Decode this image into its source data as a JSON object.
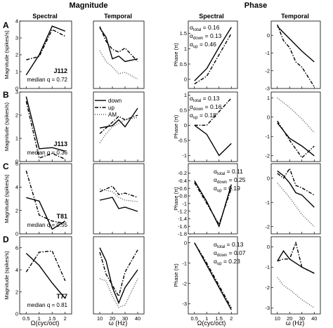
{
  "sections": {
    "magnitude": "Magnitude",
    "phase": "Phase"
  },
  "columns": [
    "Spectral",
    "Temporal",
    "Spectral",
    "Temporal"
  ],
  "row_letters": [
    "A",
    "B",
    "C",
    "D"
  ],
  "ylabels": {
    "magnitude": "Magnitude (spikes/s)",
    "phase": "Phase (π)"
  },
  "xlabels": {
    "spectral": "Ω(cyc/oct)",
    "temporal": "ω (Hz)"
  },
  "legend": {
    "down": "down",
    "up": "up",
    "am": "AM"
  },
  "colors": {
    "line": "#000000",
    "am": "#555555"
  },
  "chart_data": [
    {
      "type": "line",
      "row": "A",
      "column": "magnitude-spectral",
      "ylim": [
        0,
        4
      ],
      "yticks": [
        "0",
        "1",
        "2",
        "3",
        "4"
      ],
      "xticks": [
        "0.5",
        "1",
        "1.5",
        "2"
      ],
      "xlim": [
        0.25,
        2.25
      ],
      "series": [
        {
          "name": "down",
          "x": [
            0.5,
            1,
            1.5,
            2
          ],
          "y": [
            0.8,
            2.0,
            3.7,
            3.4
          ]
        },
        {
          "name": "up",
          "x": [
            0.5,
            1,
            1.5,
            2
          ],
          "y": [
            1.7,
            1.9,
            3.5,
            3.1
          ]
        }
      ],
      "annotations": {
        "neuron": "J112",
        "median": "median q = 0.72"
      }
    },
    {
      "type": "line",
      "row": "A",
      "column": "magnitude-temporal",
      "ylim": [
        0,
        5
      ],
      "yticks": [],
      "xticks": [
        "10",
        "20",
        "30",
        "40"
      ],
      "xlim": [
        5,
        45
      ],
      "series": [
        {
          "name": "down",
          "x": [
            10,
            15,
            20,
            25,
            30,
            40
          ],
          "y": [
            4.5,
            3.8,
            2.2,
            2.4,
            2.0,
            2.2
          ]
        },
        {
          "name": "up",
          "x": [
            10,
            15,
            20,
            25,
            30,
            40
          ],
          "y": [
            4.6,
            3.5,
            2.9,
            2.7,
            3.0,
            2.0
          ]
        },
        {
          "name": "AM",
          "x": [
            10,
            15,
            20,
            25,
            30,
            40
          ],
          "y": [
            2.8,
            2.0,
            1.6,
            1.1,
            1.2,
            0.7
          ]
        }
      ]
    },
    {
      "type": "line",
      "row": "A",
      "column": "phase-spectral",
      "ylim": [
        -0.3,
        1.9
      ],
      "yticks": [
        "0",
        "0.5",
        "1",
        "1.5"
      ],
      "xticks": [
        "0.5",
        "1",
        "1.5",
        "2"
      ],
      "xlim": [
        0.25,
        2.25
      ],
      "series": [
        {
          "name": "down",
          "x": [
            0.5,
            1,
            1.5,
            2
          ],
          "y": [
            -0.05,
            0.35,
            1.05,
            1.7
          ]
        },
        {
          "name": "up",
          "x": [
            0.5,
            1,
            1.5,
            2
          ],
          "y": [
            -0.15,
            0.1,
            0.8,
            1.5
          ]
        }
      ],
      "annotations": {
        "alpha_total": "0.16",
        "alpha_down": "0.13",
        "alpha_up": "0.46"
      }
    },
    {
      "type": "line",
      "row": "A",
      "column": "phase-temporal",
      "ylim": [
        -3,
        0.8
      ],
      "yticks": [
        "-3",
        "-2",
        "-1",
        "0"
      ],
      "xticks": [
        "10",
        "20",
        "30",
        "40"
      ],
      "xlim": [
        5,
        45
      ],
      "series": [
        {
          "name": "down",
          "x": [
            10,
            20,
            30,
            40
          ],
          "y": [
            0.5,
            -0.2,
            -0.9,
            -1.5
          ]
        },
        {
          "name": "up",
          "x": [
            10,
            15,
            20,
            25,
            30,
            40
          ],
          "y": [
            0.6,
            -0.3,
            -0.7,
            -1.5,
            -1.8,
            -2.9
          ]
        }
      ]
    },
    {
      "type": "line",
      "row": "B",
      "column": "magnitude-spectral",
      "ylim": [
        0,
        3
      ],
      "yticks": [
        "0",
        "1",
        "2",
        "3"
      ],
      "xticks": [
        "0.5",
        "1",
        "1.5",
        "2"
      ],
      "xlim": [
        0.25,
        2.25
      ],
      "series": [
        {
          "name": "down",
          "x": [
            0.5,
            1,
            1.5,
            2
          ],
          "y": [
            2.8,
            0.55,
            0.6,
            0.45
          ]
        },
        {
          "name": "up",
          "x": [
            0.5,
            1,
            1.5,
            2
          ],
          "y": [
            2.6,
            0.15,
            0.35,
            0.1
          ]
        }
      ],
      "annotations": {
        "neuron": "J113",
        "median": "median q = 0.36"
      }
    },
    {
      "type": "line",
      "row": "B",
      "column": "magnitude-temporal",
      "ylim": [
        0,
        3
      ],
      "yticks": [],
      "xticks": [
        "10",
        "20",
        "30",
        "40"
      ],
      "xlim": [
        5,
        45
      ],
      "series": [
        {
          "name": "down",
          "x": [
            10,
            20,
            25,
            30,
            40
          ],
          "y": [
            1.45,
            1.55,
            1.8,
            1.5,
            2.3
          ]
        },
        {
          "name": "up",
          "x": [
            10,
            20,
            25,
            30,
            40
          ],
          "y": [
            1.2,
            1.7,
            1.95,
            1.8,
            2.0
          ]
        },
        {
          "name": "AM",
          "x": [
            10,
            15,
            20,
            30,
            40
          ],
          "y": [
            0.8,
            1.2,
            1.5,
            1.8,
            1.9
          ]
        }
      ]
    },
    {
      "type": "line",
      "row": "B",
      "column": "phase-spectral",
      "ylim": [
        -1.2,
        1.1
      ],
      "yticks": [
        "-1",
        "-0.5",
        "0",
        "0.5",
        "1"
      ],
      "xticks": [
        "0.5",
        "1",
        "1.5",
        "2"
      ],
      "xlim": [
        0.25,
        2.25
      ],
      "series": [
        {
          "name": "down",
          "x": [
            0.5,
            1,
            1.5,
            2
          ],
          "y": [
            0,
            -0.3,
            -1.0,
            -0.6
          ]
        },
        {
          "name": "up",
          "x": [
            0.5,
            1,
            1.5,
            2
          ],
          "y": [
            0,
            0,
            0.45,
            0.9
          ]
        }
      ],
      "annotations": {
        "alpha_total": "0.13",
        "alpha_down": "0.16",
        "alpha_up": "0.18"
      }
    },
    {
      "type": "line",
      "row": "B",
      "column": "phase-temporal",
      "ylim": [
        -2.3,
        1.3
      ],
      "yticks": [
        "-2",
        "-1",
        "0",
        "1"
      ],
      "xticks": [
        "10",
        "20",
        "30",
        "40"
      ],
      "xlim": [
        5,
        45
      ],
      "series": [
        {
          "name": "down",
          "x": [
            10,
            20,
            30,
            40
          ],
          "y": [
            -0.3,
            -1.1,
            -1.5,
            -2.0
          ]
        },
        {
          "name": "up",
          "x": [
            10,
            20,
            30,
            40
          ],
          "y": [
            -0.2,
            -1.2,
            -2.1,
            -1.5
          ]
        },
        {
          "name": "AM",
          "x": [
            10,
            20,
            30,
            40
          ],
          "y": [
            1.0,
            0.5,
            -0.1,
            -0.8
          ]
        }
      ]
    },
    {
      "type": "line",
      "row": "C",
      "column": "magnitude-spectral",
      "ylim": [
        0,
        6
      ],
      "yticks": [
        "0",
        "2",
        "4",
        "6"
      ],
      "xticks": [
        "0.5",
        "1",
        "1.5",
        "2"
      ],
      "xlim": [
        0.25,
        2.25
      ],
      "series": [
        {
          "name": "down",
          "x": [
            0.5,
            1,
            1.5,
            2
          ],
          "y": [
            3.1,
            2.8,
            0.4,
            1.1
          ]
        },
        {
          "name": "up",
          "x": [
            0.5,
            1,
            1.5,
            2
          ],
          "y": [
            5.4,
            1.6,
            1.1,
            0.9
          ]
        }
      ],
      "annotations": {
        "neuron": "T81",
        "median": "median q = 0.55"
      }
    },
    {
      "type": "line",
      "row": "C",
      "column": "magnitude-temporal",
      "ylim": [
        0,
        5
      ],
      "yticks": [],
      "xticks": [
        "10",
        "20",
        "30",
        "40"
      ],
      "xlim": [
        5,
        45
      ],
      "series": [
        {
          "name": "down",
          "x": [
            10,
            20,
            25,
            30,
            40
          ],
          "y": [
            2.4,
            2.6,
            1.8,
            1.9,
            1.6
          ]
        },
        {
          "name": "up",
          "x": [
            10,
            20,
            25,
            30,
            40
          ],
          "y": [
            3.0,
            3.4,
            2.8,
            2.9,
            2.6
          ]
        },
        {
          "name": "AM",
          "x": [
            10,
            20,
            25,
            30,
            40
          ],
          "y": [
            3.2,
            3.0,
            2.6,
            2.4,
            2.3
          ]
        }
      ]
    },
    {
      "type": "line",
      "row": "C",
      "column": "phase-spectral",
      "ylim": [
        -1.8,
        0.05
      ],
      "yticks": [
        "-1.8",
        "-1.6",
        "-1.4",
        "-1.2",
        "-1",
        "-0.8",
        "-0.6",
        "-0.4",
        "-0.2"
      ],
      "xticks": [
        "0.5",
        "1",
        "1.5",
        "2"
      ],
      "xlim": [
        0.25,
        2.25
      ],
      "series": [
        {
          "name": "down",
          "x": [
            0.5,
            1,
            1.5,
            2
          ],
          "y": [
            -0.4,
            -0.95,
            -1.6,
            -0.5
          ]
        },
        {
          "name": "up",
          "x": [
            0.5,
            1,
            1.5,
            2
          ],
          "y": [
            -0.45,
            -1.0,
            -1.55,
            -0.6
          ]
        }
      ],
      "annotations": {
        "alpha_total": "0.11",
        "alpha_down": "0.25",
        "alpha_up": "0.19"
      }
    },
    {
      "type": "line",
      "row": "C",
      "column": "phase-temporal",
      "ylim": [
        -2.3,
        0.6
      ],
      "yticks": [
        "-2",
        "-1",
        "0"
      ],
      "xticks": [
        "10",
        "20",
        "30",
        "40"
      ],
      "xlim": [
        5,
        45
      ],
      "series": [
        {
          "name": "down",
          "x": [
            10,
            15,
            20,
            25,
            30,
            40
          ],
          "y": [
            0.3,
            0.1,
            -0.2,
            -0.6,
            -0.7,
            -1.2
          ]
        },
        {
          "name": "up",
          "x": [
            10,
            15,
            20,
            25,
            30,
            40
          ],
          "y": [
            0.2,
            0.0,
            0.4,
            -0.3,
            -0.4,
            -0.7
          ]
        },
        {
          "name": "AM",
          "x": [
            10,
            20,
            30,
            40
          ],
          "y": [
            -0.2,
            -0.8,
            -1.5,
            -2.0
          ]
        }
      ]
    },
    {
      "type": "line",
      "row": "D",
      "column": "magnitude-spectral",
      "ylim": [
        0,
        7
      ],
      "yticks": [
        "0",
        "2",
        "4",
        "6"
      ],
      "xticks": [
        "0.5",
        "1",
        "1.5",
        "2"
      ],
      "xlim": [
        0.25,
        2.25
      ],
      "series": [
        {
          "name": "down",
          "x": [
            0.5,
            1,
            1.5,
            2
          ],
          "y": [
            5.5,
            4.4,
            2.8,
            1.4
          ]
        },
        {
          "name": "up",
          "x": [
            0.5,
            1,
            1.5,
            2
          ],
          "y": [
            3.8,
            5.6,
            5.7,
            3.0
          ]
        }
      ],
      "annotations": {
        "neuron": "T77",
        "median": "median q = 0.81"
      }
    },
    {
      "type": "line",
      "row": "D",
      "column": "magnitude-temporal",
      "ylim": [
        0,
        7
      ],
      "yticks": [],
      "xticks": [
        "10",
        "20",
        "30",
        "40"
      ],
      "xlim": [
        5,
        45
      ],
      "series": [
        {
          "name": "down",
          "x": [
            10,
            15,
            20,
            25,
            30,
            40
          ],
          "y": [
            6.0,
            4.8,
            2.4,
            1.0,
            2.4,
            4.0
          ]
        },
        {
          "name": "up",
          "x": [
            10,
            15,
            20,
            25,
            30,
            40
          ],
          "y": [
            5.6,
            3.6,
            2.6,
            1.6,
            3.8,
            5.8
          ]
        },
        {
          "name": "AM",
          "x": [
            10,
            15,
            20,
            25,
            30,
            40
          ],
          "y": [
            3.2,
            3.0,
            1.6,
            0.6,
            0.8,
            3.2
          ]
        }
      ]
    },
    {
      "type": "line",
      "row": "D",
      "column": "phase-spectral",
      "ylim": [
        -3.5,
        0.3
      ],
      "yticks": [
        "-3",
        "-2",
        "-1",
        "0"
      ],
      "xticks": [
        "0.5",
        "1",
        "1.5",
        "2"
      ],
      "xlim": [
        0.25,
        2.25
      ],
      "series": [
        {
          "name": "down",
          "x": [
            0.5,
            1,
            1.5,
            2
          ],
          "y": [
            0,
            -1.1,
            -2.2,
            -3.3
          ]
        },
        {
          "name": "up",
          "x": [
            0.5,
            1,
            1.5,
            2
          ],
          "y": [
            0,
            -1.0,
            -2.1,
            -3.2
          ]
        }
      ],
      "annotations": {
        "alpha_total": "0.13",
        "alpha_down": "0.07",
        "alpha_up": "0.23"
      }
    },
    {
      "type": "line",
      "row": "D",
      "column": "phase-temporal",
      "ylim": [
        -3.3,
        0.5
      ],
      "yticks": [
        "-3",
        "-2",
        "-1",
        "0"
      ],
      "xticks": [
        "10",
        "20",
        "30",
        "40"
      ],
      "xlim": [
        5,
        45
      ],
      "series": [
        {
          "name": "down",
          "x": [
            10,
            15,
            20,
            25,
            30,
            40
          ],
          "y": [
            -0.7,
            -0.2,
            -0.6,
            -0.8,
            -1.0,
            -1.3
          ]
        },
        {
          "name": "up",
          "x": [
            10,
            15,
            20,
            25,
            30,
            40
          ],
          "y": [
            -0.7,
            -0.6,
            -0.6,
            0.2,
            -1.0,
            -1.3
          ]
        },
        {
          "name": "AM",
          "x": [
            10,
            15,
            20,
            30,
            40
          ],
          "y": [
            -1.5,
            -1.9,
            -2.1,
            -2.6,
            -3.0
          ]
        }
      ]
    }
  ]
}
